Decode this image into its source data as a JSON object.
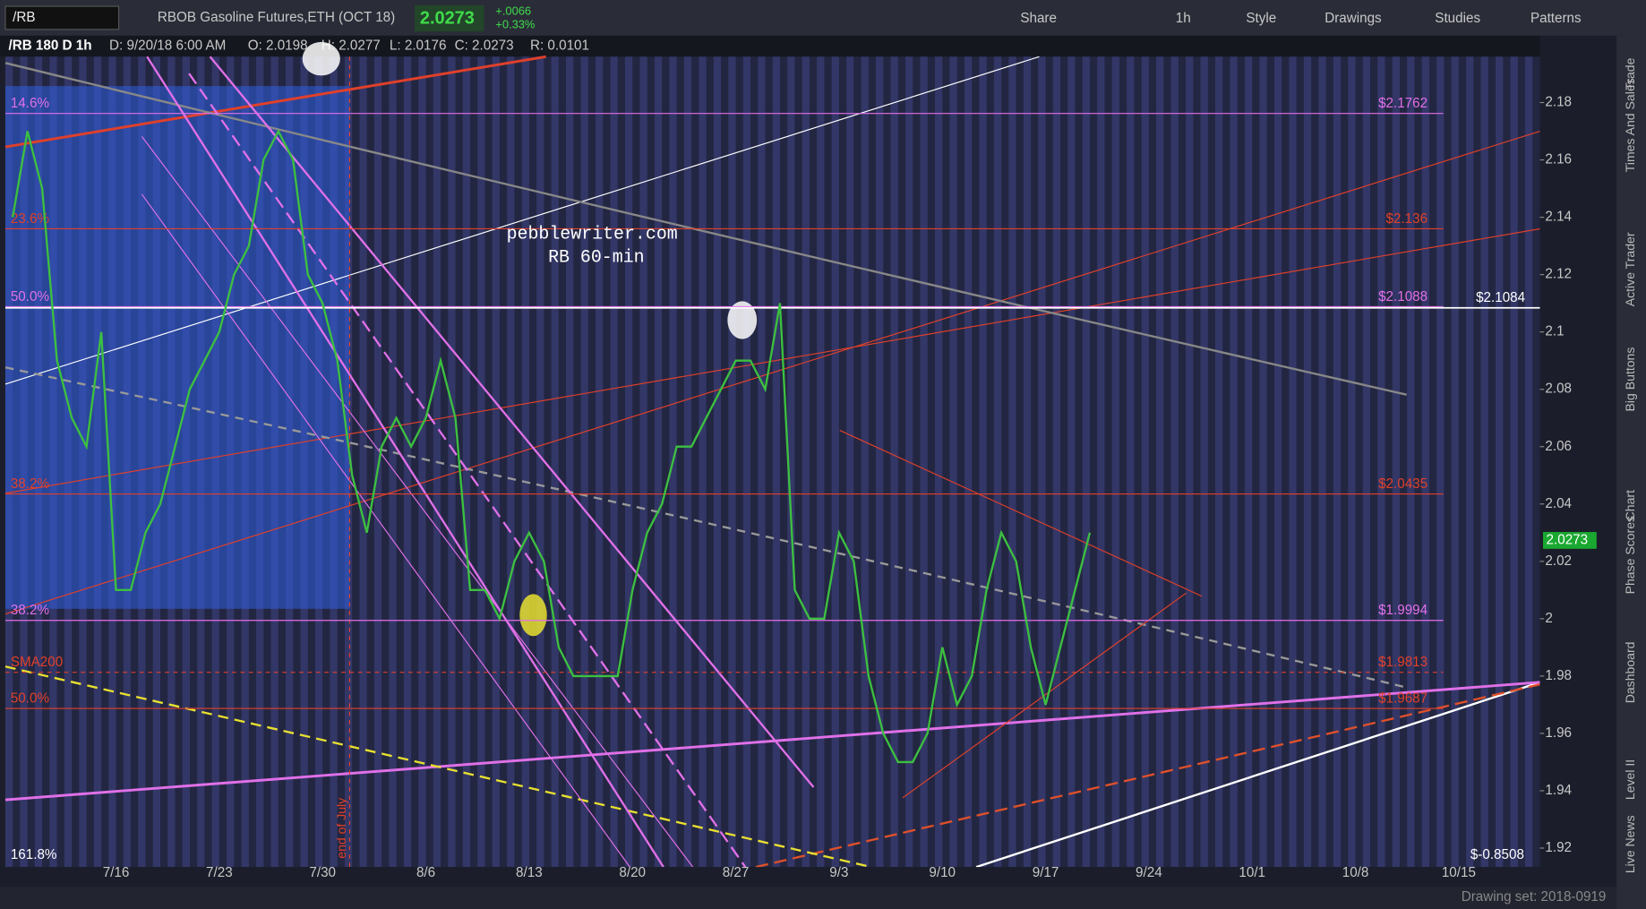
{
  "toolbar": {
    "symbol": "/RB",
    "description": "RBOB Gasoline Futures,ETH (OCT 18)",
    "last": "2.0273",
    "change": "+.0066",
    "change_pct": "+0.33%",
    "buttons": [
      "Share",
      "1h",
      "Style",
      "Drawings",
      "Studies",
      "Patterns"
    ]
  },
  "info_bar": [
    "/RB 180 D 1h",
    "D: 9/20/18 6:00 AM",
    "O: 2.0198",
    "H: 2.0277",
    "L: 2.0176",
    "C: 2.0273",
    "R: 0.0101"
  ],
  "sidebar": [
    "Trade",
    "Times And Sales",
    "Active Trader",
    "Big Buttons",
    "Chart",
    "Phase Scores",
    "Dashboard",
    "Level II",
    "Live News"
  ],
  "footer": "Drawing set: 2018-0919",
  "chart_data": {
    "type": "line",
    "annotations": {
      "watermark": "pebblewriter.com",
      "watermark_sub": "RB  60-min",
      "end_of_july": "end of July",
      "ext": "161.8%",
      "ext_price": "$-0.8508"
    },
    "ylim": [
      1.9134,
      2.196
    ],
    "yticks": [
      1.92,
      1.94,
      1.96,
      1.98,
      2,
      2.02,
      2.04,
      2.06,
      2.08,
      2.1,
      2.12,
      2.14,
      2.16,
      2.18
    ],
    "last_price": 2.0273,
    "levels": [
      {
        "value": 2.1762,
        "label": "$2.1762",
        "color": "#e070e8",
        "left_label": "14.6%"
      },
      {
        "value": 2.136,
        "label": "$2.136",
        "color": "#e0402a",
        "left_label": "23.6%"
      },
      {
        "value": 2.1088,
        "label": "$2.1088",
        "color": "#e070e8",
        "left_label": "50.0%"
      },
      {
        "value": 2.1084,
        "label": "$2.1084",
        "color": "#ffffff",
        "label_side": "axis"
      },
      {
        "value": 2.0435,
        "label": "$2.0435",
        "color": "#e0402a",
        "left_label": "38.2%"
      },
      {
        "value": 1.9994,
        "label": "$1.9994",
        "color": "#e070e8",
        "left_label": "38.2%"
      },
      {
        "value": 1.9813,
        "label": "$1.9813",
        "color": "#e0402a",
        "left_label": "SMA200",
        "dashed": true
      },
      {
        "value": 1.9687,
        "label": "$1.9687",
        "color": "#e0402a",
        "left_label": "50.0%"
      }
    ],
    "categories": [
      null,
      null,
      null,
      null,
      null,
      null,
      null,
      "7/16",
      null,
      null,
      null,
      null,
      null,
      null,
      "7/23",
      null,
      null,
      null,
      null,
      null,
      null,
      "7/30",
      null,
      null,
      null,
      null,
      null,
      null,
      "8/6",
      null,
      null,
      null,
      null,
      null,
      null,
      "8/13",
      null,
      null,
      null,
      null,
      null,
      null,
      "8/20",
      null,
      null,
      null,
      null,
      null,
      null,
      "8/27",
      null,
      null,
      null,
      null,
      null,
      null,
      "9/3",
      null,
      null,
      null,
      null,
      null,
      null,
      "9/10",
      null,
      null,
      null,
      null,
      null,
      null,
      "9/17",
      null,
      null,
      null,
      null,
      null,
      null,
      "9/24",
      null,
      null,
      null,
      null,
      null,
      null,
      "10/1",
      null,
      null,
      null,
      null,
      null,
      null,
      "10/8",
      null,
      null,
      null,
      null,
      null,
      null,
      "10/15",
      null,
      null,
      null,
      null,
      null
    ],
    "series": [
      {
        "name": "/RB",
        "color": "#3cc040",
        "values": [
          2.14,
          2.17,
          2.15,
          2.09,
          2.07,
          2.06,
          2.1,
          2.01,
          2.01,
          2.03,
          2.04,
          2.06,
          2.08,
          2.09,
          2.1,
          2.12,
          2.13,
          2.16,
          2.17,
          2.16,
          2.12,
          2.11,
          2.09,
          2.05,
          2.03,
          2.06,
          2.07,
          2.06,
          2.07,
          2.09,
          2.07,
          2.01,
          2.01,
          2,
          2.02,
          2.03,
          2.02,
          1.99,
          1.98,
          1.98,
          1.98,
          1.98,
          2.01,
          2.03,
          2.04,
          2.06,
          2.06,
          2.07,
          2.08,
          2.09,
          2.09,
          2.08,
          2.11,
          2.01,
          2,
          2,
          2.03,
          2.02,
          1.98,
          1.96,
          1.95,
          1.95,
          1.96,
          1.99,
          1.97,
          1.98,
          2.01,
          2.03,
          2.02,
          1.99,
          1.97,
          1.99,
          2.01,
          2.03,
          null,
          null,
          null,
          null,
          null,
          null,
          null,
          null,
          null,
          null,
          null,
          null,
          null,
          null,
          null,
          null,
          null,
          null,
          null,
          null,
          null,
          null,
          null,
          null,
          null,
          null,
          null,
          null,
          null,
          null
        ]
      }
    ]
  }
}
